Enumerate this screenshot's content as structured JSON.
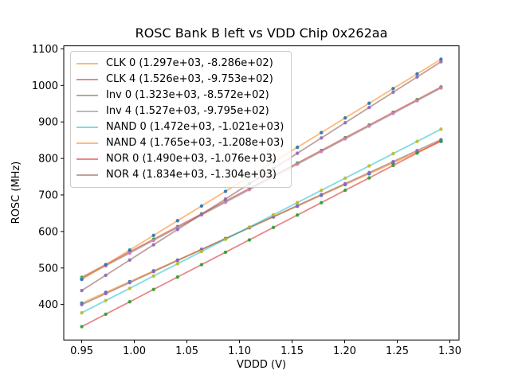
{
  "title": "ROSC Bank B left vs VDD Chip 0x262aa",
  "chart_data": {
    "type": "line",
    "markers": true,
    "grid": false,
    "legend_position": "upper-left",
    "legend_note": "each label shows (slope, intercept) of linear fit in MHz/V and MHz",
    "xlabel": "VDDD (V)",
    "ylabel": "ROSC (MHz)",
    "xlim": [
      0.9329,
      1.3087
    ],
    "ylim": [
      302.9,
      1108.3
    ],
    "x_ticks": {
      "values": [
        0.95,
        1.0,
        1.05,
        1.1,
        1.15,
        1.2,
        1.25,
        1.3
      ],
      "labels": [
        "0.95",
        "1.00",
        "1.05",
        "1.10",
        "1.15",
        "1.20",
        "1.25",
        "1.30"
      ]
    },
    "y_ticks": {
      "values": [
        400,
        500,
        600,
        700,
        800,
        900,
        1000,
        1100
      ],
      "labels": [
        "400",
        "500",
        "600",
        "700",
        "800",
        "900",
        "1000",
        "1100"
      ]
    },
    "line_alpha": 0.55,
    "marker_alpha": 0.9,
    "x": [
      0.95,
      0.9728,
      0.9956,
      1.0183,
      1.0411,
      1.0639,
      1.0867,
      1.1094,
      1.1322,
      1.155,
      1.1778,
      1.2005,
      1.2233,
      1.2461,
      1.2689,
      1.2916
    ],
    "series": [
      {
        "name": "CLK 0",
        "label": "CLK 0 (1.297e+03, -8.286e+02)",
        "slope": 1297,
        "intercept": -828.6,
        "line_color": "#ff7f0e",
        "marker_color": "#1f77b4",
        "y": [
          403.6,
          433.1,
          462.6,
          492.2,
          521.7,
          551.2,
          580.8,
          610.3,
          639.8,
          669.4,
          698.9,
          728.5,
          758.0,
          787.5,
          817.1,
          846.6
        ]
      },
      {
        "name": "CLK 4",
        "label": "CLK 4 (1.526e+03, -9.753e+02)",
        "slope": 1526,
        "intercept": -975.3,
        "line_color": "#d62728",
        "marker_color": "#2ca02c",
        "y": [
          474.4,
          509.2,
          543.9,
          578.7,
          613.4,
          648.2,
          682.9,
          717.7,
          752.4,
          787.2,
          821.9,
          856.7,
          891.4,
          926.2,
          960.9,
          995.7
        ]
      },
      {
        "name": "Inv 0",
        "label": "Inv 0 (1.323e+03, -8.572e+02)",
        "slope": 1323,
        "intercept": -857.2,
        "line_color": "#8c564b",
        "marker_color": "#9467bd",
        "y": [
          399.7,
          429.8,
          459.9,
          490.0,
          520.2,
          550.3,
          580.4,
          610.6,
          640.7,
          670.8,
          700.9,
          731.1,
          761.2,
          791.3,
          821.5,
          851.6
        ]
      },
      {
        "name": "Inv 4",
        "label": "Inv 4 (1.527e+03, -9.795e+02)",
        "slope": 1527,
        "intercept": -979.5,
        "line_color": "#7f7f7f",
        "marker_color": "#e377c2",
        "y": [
          471.2,
          505.9,
          540.7,
          575.5,
          610.3,
          645.0,
          679.8,
          714.6,
          749.4,
          784.1,
          818.9,
          853.7,
          888.5,
          923.2,
          958.0,
          992.8
        ]
      },
      {
        "name": "NAND 0",
        "label": "NAND 0 (1.472e+03, -1.021e+03)",
        "slope": 1472,
        "intercept": -1021,
        "line_color": "#17becf",
        "marker_color": "#bcbd22",
        "y": [
          377.4,
          410.9,
          444.4,
          478.0,
          511.5,
          545.0,
          578.5,
          612.1,
          645.6,
          679.1,
          712.6,
          746.1,
          779.7,
          813.2,
          846.7,
          880.2
        ]
      },
      {
        "name": "NAND 4",
        "label": "NAND 4 (1.765e+03, -1.208e+03)",
        "slope": 1765,
        "intercept": -1208,
        "line_color": "#ff7f0e",
        "marker_color": "#1f77b4",
        "y": [
          468.8,
          509.0,
          549.1,
          589.3,
          629.5,
          669.7,
          709.9,
          750.1,
          790.3,
          830.5,
          870.7,
          910.9,
          951.1,
          991.3,
          1031.5,
          1071.7
        ]
      },
      {
        "name": "NOR 0",
        "label": "NOR 0 (1.490e+03, -1.076e+03)",
        "slope": 1490,
        "intercept": -1076,
        "line_color": "#d62728",
        "marker_color": "#2ca02c",
        "y": [
          339.5,
          373.4,
          407.4,
          441.3,
          475.2,
          509.2,
          543.1,
          577.0,
          611.0,
          644.9,
          678.8,
          712.8,
          746.7,
          780.6,
          814.6,
          848.5
        ]
      },
      {
        "name": "NOR 4",
        "label": "NOR 4 (1.834e+03, -1.304e+03)",
        "slope": 1834,
        "intercept": -1304,
        "line_color": "#8c564b",
        "marker_color": "#9467bd",
        "y": [
          438.3,
          480.1,
          521.8,
          563.6,
          605.4,
          647.1,
          688.9,
          730.7,
          772.4,
          814.2,
          856.0,
          897.7,
          939.5,
          981.3,
          1023.0,
          1064.8
        ]
      }
    ]
  }
}
